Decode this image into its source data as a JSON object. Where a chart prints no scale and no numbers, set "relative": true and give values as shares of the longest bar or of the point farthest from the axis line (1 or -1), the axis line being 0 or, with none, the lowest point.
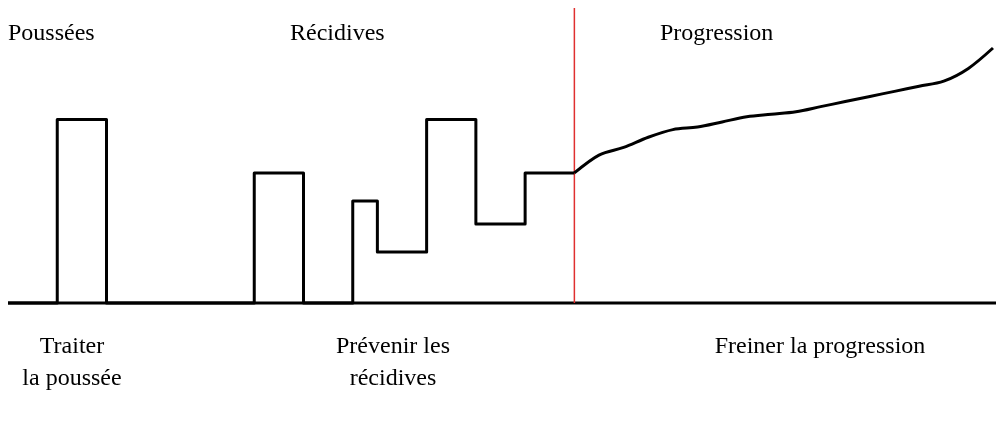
{
  "chart_data": {
    "type": "step",
    "relative": true,
    "categories": [
      null,
      null,
      null,
      null,
      null,
      null,
      null,
      null,
      null,
      null,
      null,
      null,
      null,
      null,
      null,
      null,
      null,
      null,
      null,
      null,
      null,
      null,
      null,
      null,
      null,
      null,
      null,
      null,
      null,
      null,
      null,
      null,
      null,
      null,
      null,
      null,
      null,
      null,
      null,
      null,
      null
    ],
    "series": [
      {
        "type": "step",
        "color": "#000000",
        "values": [
          0,
          0,
          0.72,
          0.72,
          0,
          0,
          0,
          0,
          0,
          0,
          0.51,
          0.51,
          0,
          0,
          0.4,
          0.2,
          0.2,
          0.72,
          0.72,
          0.31,
          0.31,
          0.51,
          0.51,
          0.51,
          null,
          null,
          null,
          null,
          null,
          null,
          null,
          null,
          null,
          null,
          null,
          null,
          null,
          null,
          null,
          null,
          null
        ]
      },
      {
        "type": "line",
        "color": "#000000",
        "values": [
          null,
          null,
          null,
          null,
          null,
          null,
          null,
          null,
          null,
          null,
          null,
          null,
          null,
          null,
          null,
          null,
          null,
          null,
          null,
          null,
          null,
          null,
          null,
          0.51,
          0.58,
          0.61,
          0.65,
          0.68,
          0.69,
          0.71,
          0.73,
          0.74,
          0.75,
          0.77,
          0.79,
          0.81,
          0.83,
          0.85,
          0.87,
          0.92,
          1
        ]
      }
    ],
    "annotations": [
      "Poussées",
      "Récidives",
      "Progression",
      "Traiter\nla poussée",
      "Prévenir les\nrécidives",
      "Freiner la progression"
    ]
  }
}
